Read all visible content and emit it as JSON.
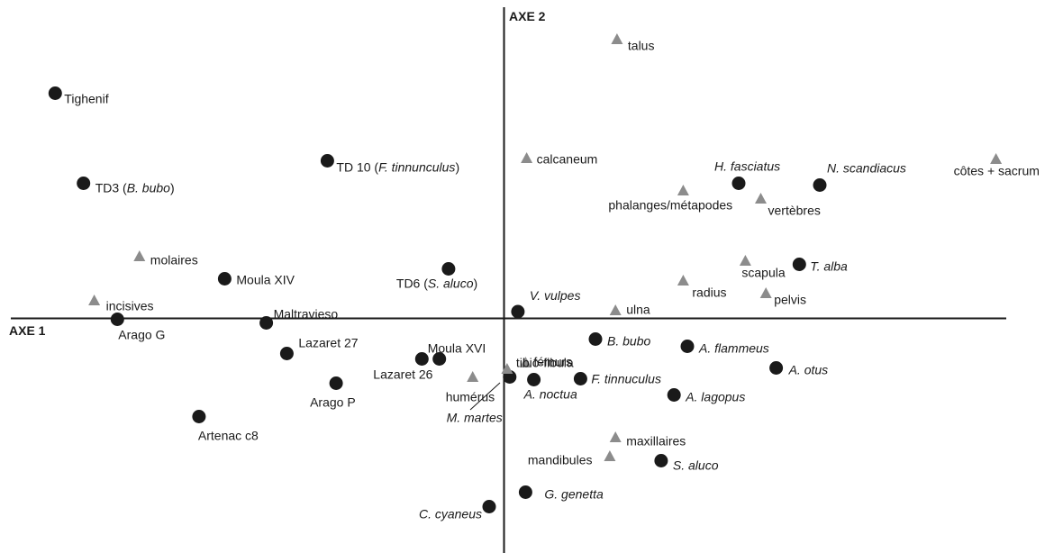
{
  "chart_data": {
    "type": "scatter",
    "title": "",
    "xlabel": "AXE 1",
    "ylabel": "AXE 2",
    "xlim": [
      -10,
      10
    ],
    "ylim": [
      -5,
      7
    ],
    "grid": false,
    "series": [
      {
        "marker": "circle",
        "color": "#1a1a1a",
        "points": [
          {
            "label": "Tighenif",
            "italic": false,
            "x": -8.74,
            "y": 5.0
          },
          {
            "label": "TD3 (B. bubo)",
            "italic": false,
            "x": -8.19,
            "y": 3.0
          },
          {
            "label": "TD 10 (F. tinnunculus)",
            "italic": false,
            "x": -3.44,
            "y": 3.5
          },
          {
            "label": "TD6 (S. aluco)",
            "italic": false,
            "x": -1.08,
            "y": 1.1
          },
          {
            "label": "Moula XIV",
            "italic": false,
            "x": -5.44,
            "y": 0.88
          },
          {
            "label": "Arago G",
            "italic": false,
            "x": -7.53,
            "y": -0.02
          },
          {
            "label": "Maltravieso",
            "italic": false,
            "x": -4.63,
            "y": -0.1
          },
          {
            "label": "Lazaret 27",
            "italic": false,
            "x": -4.23,
            "y": -0.78
          },
          {
            "label": "Lazaret 26",
            "italic": false,
            "x": -1.6,
            "y": -0.9
          },
          {
            "label": "Moula XVI",
            "italic": false,
            "x": -1.26,
            "y": -0.9
          },
          {
            "label": "Arago P",
            "italic": false,
            "x": -3.27,
            "y": -1.44
          },
          {
            "label": "Artenac c8",
            "italic": false,
            "x": -5.94,
            "y": -2.18
          },
          {
            "label": "M. martes",
            "italic": true,
            "x": 0.11,
            "y": -1.3
          },
          {
            "label": "A. noctua",
            "italic": true,
            "x": 0.58,
            "y": -1.36
          },
          {
            "label": "F. tinnuculus",
            "italic": true,
            "x": 1.49,
            "y": -1.34
          },
          {
            "label": "V. vulpes",
            "italic": true,
            "x": 0.27,
            "y": 0.15
          },
          {
            "label": "B. bubo",
            "italic": true,
            "x": 1.78,
            "y": -0.46
          },
          {
            "label": "A. flammeus",
            "italic": true,
            "x": 3.57,
            "y": -0.62
          },
          {
            "label": "A. otus",
            "italic": true,
            "x": 5.3,
            "y": -1.1
          },
          {
            "label": "A. lagopus",
            "italic": true,
            "x": 3.31,
            "y": -1.7
          },
          {
            "label": "S. aluco",
            "italic": true,
            "x": 3.06,
            "y": -3.16
          },
          {
            "label": "G. genetta",
            "italic": true,
            "x": 0.42,
            "y": -3.86
          },
          {
            "label": "C. cyaneus",
            "italic": true,
            "x": -0.29,
            "y": -4.18
          },
          {
            "label": "T. alba",
            "italic": true,
            "x": 5.75,
            "y": 1.2
          },
          {
            "label": "H. fasciatus",
            "italic": true,
            "x": 4.57,
            "y": 3.0
          },
          {
            "label": "N. scandiacus",
            "italic": true,
            "x": 6.15,
            "y": 2.96
          }
        ]
      },
      {
        "marker": "triangle",
        "color": "#8c8c8c",
        "points": [
          {
            "label": "talus",
            "italic": false,
            "x": 2.2,
            "y": 6.2
          },
          {
            "label": "calcaneum",
            "italic": false,
            "x": 0.44,
            "y": 3.56
          },
          {
            "label": "côtes + sacrum",
            "italic": false,
            "x": 9.58,
            "y": 3.54
          },
          {
            "label": "phalanges/métapodes",
            "italic": false,
            "x": 3.49,
            "y": 2.84
          },
          {
            "label": "vertèbres",
            "italic": false,
            "x": 5.0,
            "y": 2.66
          },
          {
            "label": "scapula",
            "italic": false,
            "x": 4.7,
            "y": 1.28
          },
          {
            "label": "radius",
            "italic": false,
            "x": 3.49,
            "y": 0.84
          },
          {
            "label": "pelvis",
            "italic": false,
            "x": 5.1,
            "y": 0.56
          },
          {
            "label": "ulna",
            "italic": false,
            "x": 2.17,
            "y": 0.18
          },
          {
            "label": "molaires",
            "italic": false,
            "x": -7.1,
            "y": 1.38
          },
          {
            "label": "incisives",
            "italic": false,
            "x": -7.98,
            "y": 0.4
          },
          {
            "label": "fémurs",
            "italic": false,
            "x": 0.42,
            "y": -0.98
          },
          {
            "label": "tibio-fibula",
            "italic": false,
            "x": 0.06,
            "y": -1.12
          },
          {
            "label": "humérus",
            "italic": false,
            "x": -0.61,
            "y": -1.3
          },
          {
            "label": "maxillaires",
            "italic": false,
            "x": 2.17,
            "y": -2.64
          },
          {
            "label": "mandibules",
            "italic": false,
            "x": 2.06,
            "y": -3.06
          }
        ]
      }
    ]
  }
}
